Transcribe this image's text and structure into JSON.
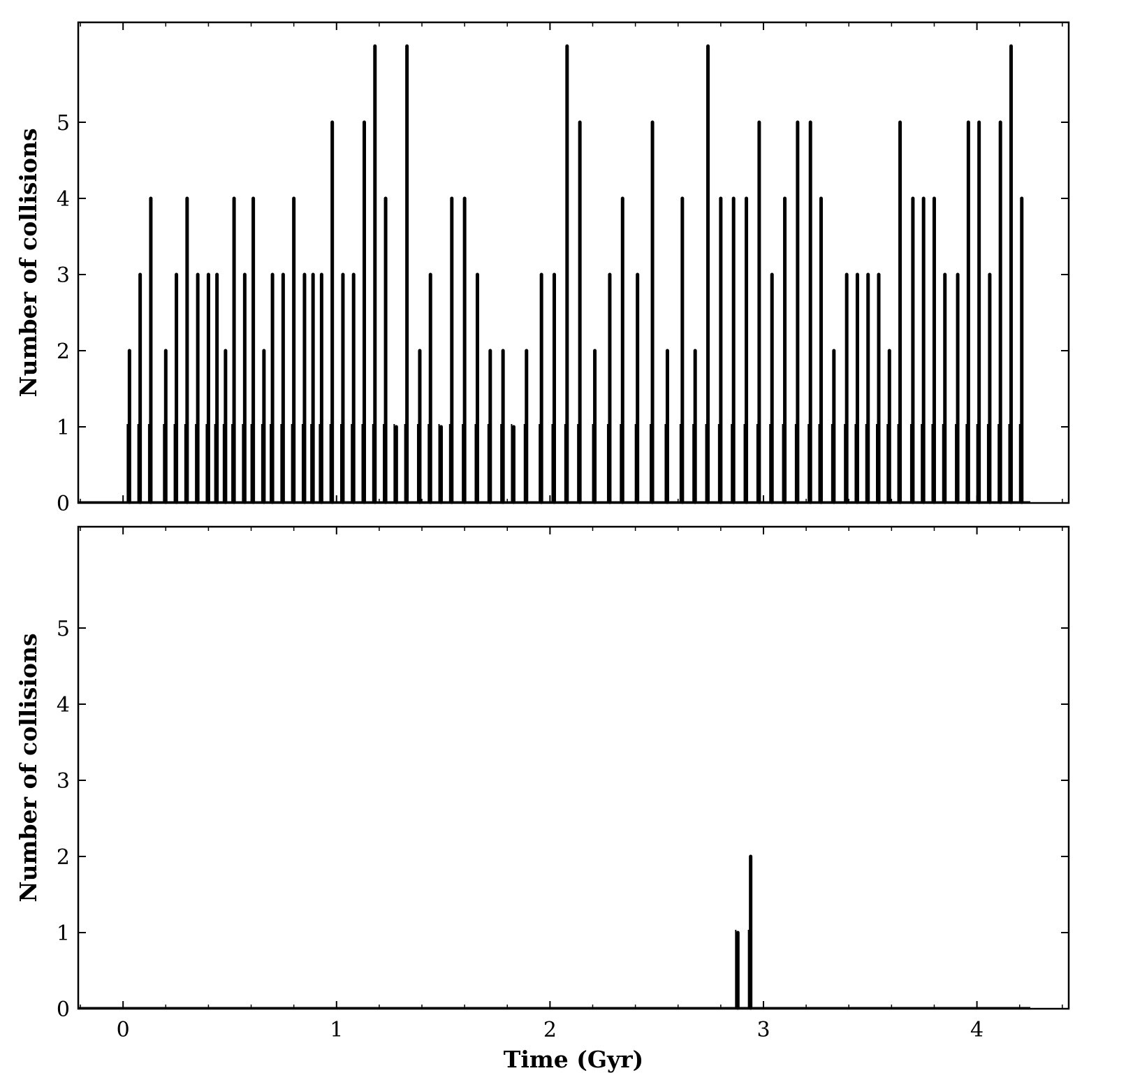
{
  "chart_data": [
    {
      "type": "bar",
      "ylabel": "Number of collisions",
      "xlabel": "",
      "xlim": [
        -0.21,
        4.43
      ],
      "ylim": [
        0,
        6
      ],
      "xticks": [
        0,
        1,
        2,
        3,
        4
      ],
      "yticks": [
        0,
        1,
        2,
        3,
        4,
        5
      ],
      "ytick_labels": [
        "0",
        "1",
        "2",
        "3",
        "4",
        "5"
      ],
      "x": [
        0.03,
        0.08,
        0.13,
        0.2,
        0.25,
        0.3,
        0.35,
        0.4,
        0.44,
        0.48,
        0.52,
        0.57,
        0.61,
        0.66,
        0.7,
        0.75,
        0.8,
        0.85,
        0.89,
        0.93,
        0.98,
        1.03,
        1.08,
        1.13,
        1.18,
        1.23,
        1.28,
        1.33,
        1.39,
        1.44,
        1.49,
        1.54,
        1.6,
        1.66,
        1.72,
        1.78,
        1.83,
        1.89,
        1.96,
        2.02,
        2.08,
        2.14,
        2.21,
        2.28,
        2.34,
        2.41,
        2.48,
        2.55,
        2.62,
        2.68,
        2.74,
        2.8,
        2.86,
        2.92,
        2.98,
        3.04,
        3.1,
        3.16,
        3.22,
        3.27,
        3.33,
        3.39,
        3.44,
        3.49,
        3.54,
        3.59,
        3.64,
        3.7,
        3.75,
        3.8,
        3.85,
        3.91,
        3.96,
        4.01,
        4.06,
        4.11,
        4.16,
        4.21
      ],
      "values": [
        2,
        3,
        4,
        2,
        3,
        4,
        3,
        3,
        3,
        2,
        4,
        3,
        4,
        2,
        3,
        3,
        4,
        3,
        3,
        3,
        5,
        3,
        3,
        5,
        6,
        4,
        1,
        6,
        2,
        3,
        1,
        4,
        4,
        3,
        2,
        2,
        1,
        2,
        3,
        3,
        6,
        5,
        2,
        3,
        4,
        3,
        5,
        2,
        4,
        2,
        6,
        4,
        4,
        4,
        5,
        3,
        4,
        5,
        5,
        4,
        2,
        3,
        3,
        3,
        3,
        2,
        5,
        4,
        4,
        4,
        3,
        3,
        5,
        5,
        3,
        5,
        6,
        4
      ]
    },
    {
      "type": "bar",
      "ylabel": "Number of collisions",
      "xlabel": "Time (Gyr)",
      "xlim": [
        -0.21,
        4.43
      ],
      "ylim": [
        0,
        6
      ],
      "xticks": [
        0,
        1,
        2,
        3,
        4
      ],
      "xtick_labels": [
        "0",
        "1",
        "2",
        "3",
        "4"
      ],
      "yticks": [
        0,
        1,
        2,
        3,
        4,
        5
      ],
      "ytick_labels": [
        "0",
        "1",
        "2",
        "3",
        "4",
        "5"
      ],
      "x": [
        2.88,
        2.94
      ],
      "values": [
        1,
        2
      ]
    }
  ]
}
